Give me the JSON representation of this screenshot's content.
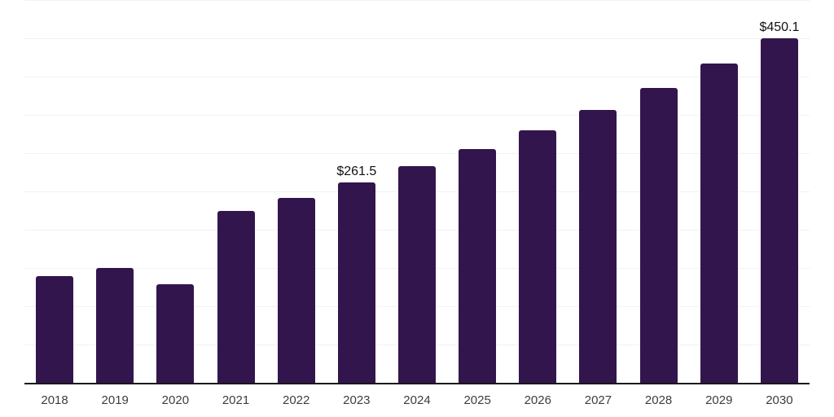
{
  "chart_data": {
    "type": "bar",
    "title": "",
    "xlabel": "",
    "ylabel": "",
    "categories": [
      "2018",
      "2019",
      "2020",
      "2021",
      "2022",
      "2023",
      "2024",
      "2025",
      "2026",
      "2027",
      "2028",
      "2029",
      "2030"
    ],
    "values": [
      139,
      150,
      129,
      224,
      242,
      261.5,
      282.6,
      305.4,
      330.1,
      356.7,
      385.5,
      416.6,
      450.1
    ],
    "point_labels": [
      "",
      "",
      "",
      "",
      "",
      "$261.5",
      "",
      "",
      "",
      "",
      "",
      "",
      "$450.1"
    ],
    "ylim": [
      0,
      500
    ],
    "gridline_step": 50,
    "grid": "horizontal-only",
    "legend": "none",
    "y_axis_labels_visible": false,
    "colors": {
      "bar_fill": "#33154E",
      "axis_line": "#1a1a1a",
      "gridline": "#f2f2f2",
      "data_label_text": "#111111",
      "tick_label_text": "#3d3d3d",
      "background": "#ffffff"
    }
  }
}
